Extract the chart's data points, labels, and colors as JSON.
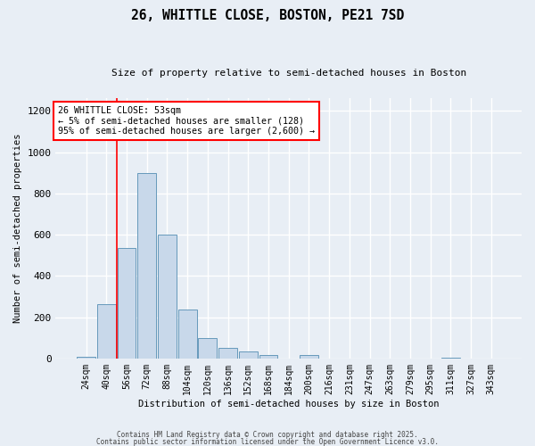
{
  "title1": "26, WHITTLE CLOSE, BOSTON, PE21 7SD",
  "title2": "Size of property relative to semi-detached houses in Boston",
  "xlabel": "Distribution of semi-detached houses by size in Boston",
  "ylabel": "Number of semi-detached properties",
  "bar_labels": [
    "24sqm",
    "40sqm",
    "56sqm",
    "72sqm",
    "88sqm",
    "104sqm",
    "120sqm",
    "136sqm",
    "152sqm",
    "168sqm",
    "184sqm",
    "200sqm",
    "216sqm",
    "231sqm",
    "247sqm",
    "263sqm",
    "279sqm",
    "295sqm",
    "311sqm",
    "327sqm",
    "343sqm"
  ],
  "bar_values": [
    10,
    265,
    535,
    900,
    600,
    235,
    100,
    50,
    35,
    15,
    0,
    15,
    0,
    0,
    0,
    0,
    0,
    0,
    5,
    0,
    0
  ],
  "bar_color": "#c8d8ea",
  "bar_edge_color": "#6699bb",
  "red_line_index": 2,
  "annotation_title": "26 WHITTLE CLOSE: 53sqm",
  "annotation_line1": "← 5% of semi-detached houses are smaller (128)",
  "annotation_line2": "95% of semi-detached houses are larger (2,600) →",
  "ylim": [
    0,
    1260
  ],
  "yticks": [
    0,
    200,
    400,
    600,
    800,
    1000,
    1200
  ],
  "background_color": "#e8eef5",
  "grid_color": "#ffffff",
  "footnote1": "Contains HM Land Registry data © Crown copyright and database right 2025.",
  "footnote2": "Contains public sector information licensed under the Open Government Licence v3.0."
}
